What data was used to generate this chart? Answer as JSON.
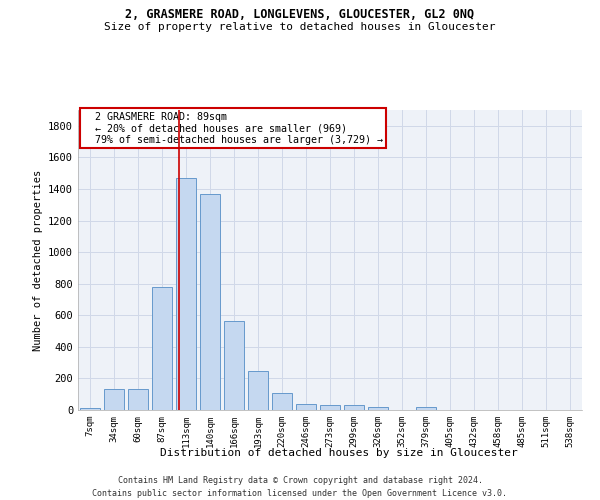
{
  "title1": "2, GRASMERE ROAD, LONGLEVENS, GLOUCESTER, GL2 0NQ",
  "title2": "Size of property relative to detached houses in Gloucester",
  "xlabel": "Distribution of detached houses by size in Gloucester",
  "ylabel": "Number of detached properties",
  "bar_labels": [
    "7sqm",
    "34sqm",
    "60sqm",
    "87sqm",
    "113sqm",
    "140sqm",
    "166sqm",
    "193sqm",
    "220sqm",
    "246sqm",
    "273sqm",
    "299sqm",
    "326sqm",
    "352sqm",
    "379sqm",
    "405sqm",
    "432sqm",
    "458sqm",
    "485sqm",
    "511sqm",
    "538sqm"
  ],
  "bar_values": [
    10,
    130,
    130,
    780,
    1470,
    1370,
    565,
    250,
    110,
    35,
    30,
    30,
    20,
    0,
    20,
    0,
    0,
    0,
    0,
    0,
    0
  ],
  "bar_color": "#c5d8f0",
  "bar_edgecolor": "#6699cc",
  "vline_x": 3.72,
  "vline_color": "#cc0000",
  "annotation_text": "  2 GRASMERE ROAD: 89sqm\n  ← 20% of detached houses are smaller (969)\n  79% of semi-detached houses are larger (3,729) →",
  "annotation_box_color": "#ffffff",
  "annotation_box_edgecolor": "#cc0000",
  "ylim": [
    0,
    1900
  ],
  "yticks": [
    0,
    200,
    400,
    600,
    800,
    1000,
    1200,
    1400,
    1600,
    1800
  ],
  "footer1": "Contains HM Land Registry data © Crown copyright and database right 2024.",
  "footer2": "Contains public sector information licensed under the Open Government Licence v3.0.",
  "bg_color": "#eef2f8",
  "grid_color": "#d0d8e8"
}
